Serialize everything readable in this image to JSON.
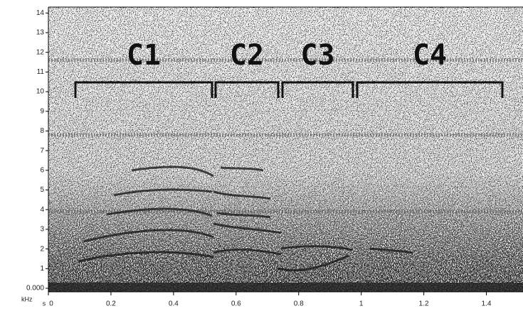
{
  "chart_data": {
    "type": "spectrogram",
    "x_label": "s",
    "y_label": "kHz",
    "xlim": [
      0,
      1.517
    ],
    "ylim": [
      0,
      14.3
    ],
    "xticks": [
      0,
      0.2,
      0.4,
      0.6,
      0.8,
      1,
      1.2,
      1.4
    ],
    "yticks": [
      {
        "value": 0,
        "label": "0.000"
      },
      1,
      2,
      3,
      4,
      5,
      6,
      7,
      8,
      9,
      10,
      11,
      12,
      13,
      14
    ],
    "annotations": [
      "C1",
      "C2",
      "C3",
      "C4"
    ]
  }
}
